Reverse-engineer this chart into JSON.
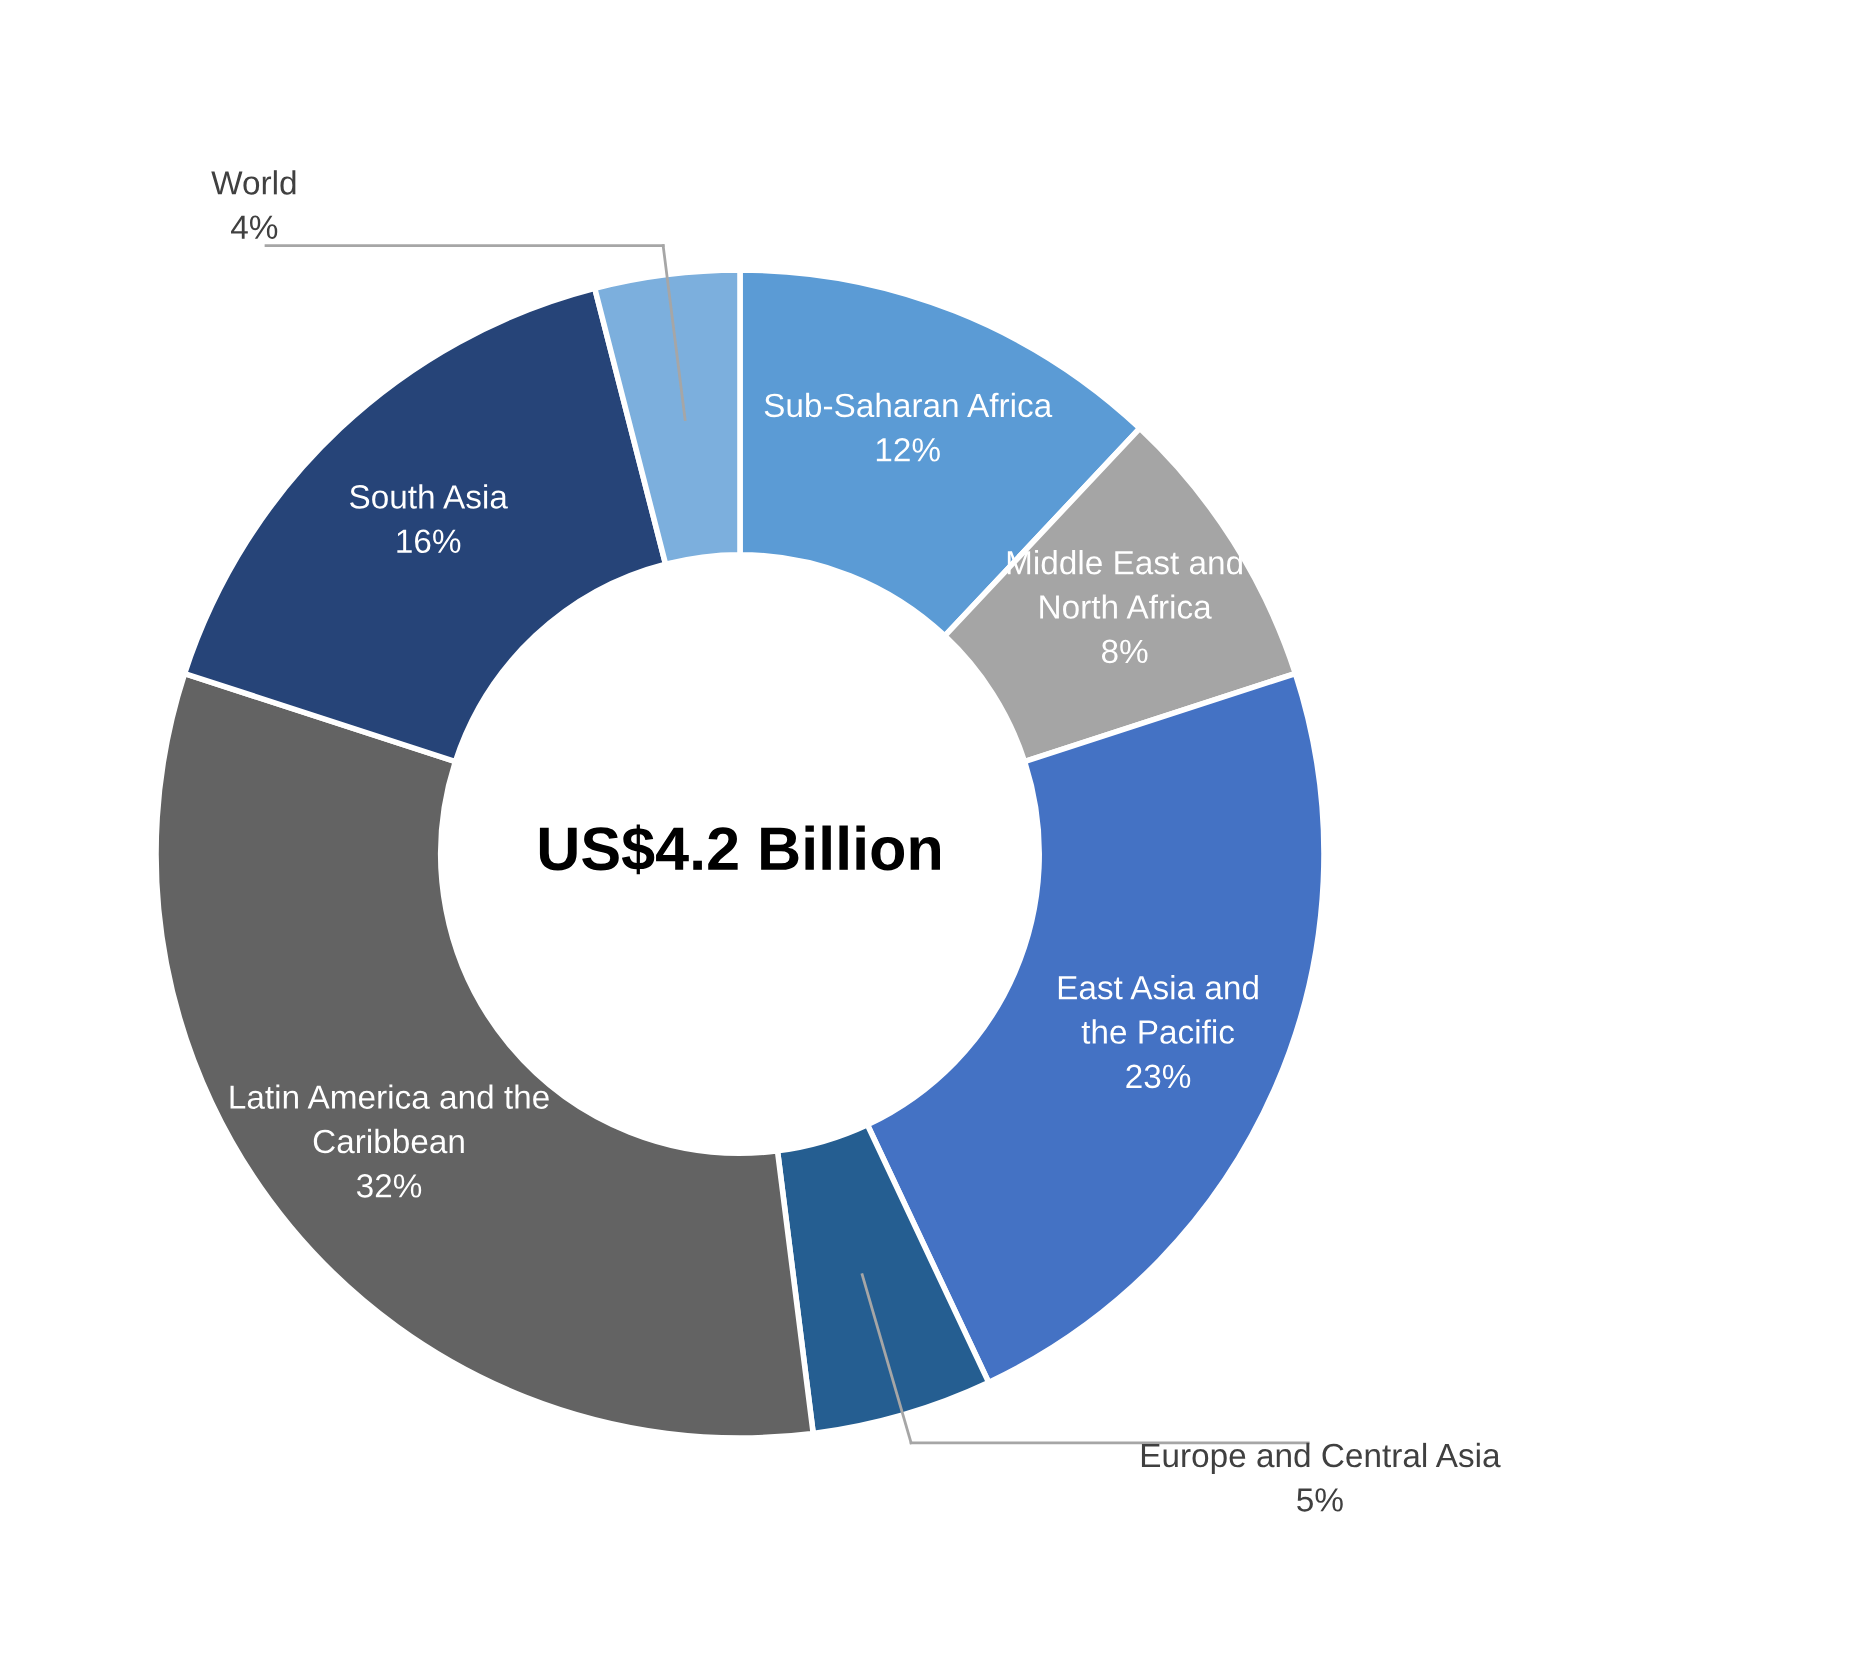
{
  "chart_data": {
    "type": "donut",
    "categories": [
      "Sub-Saharan Africa",
      "Middle East and\nNorth Africa",
      "East Asia and\nthe Pacific",
      "Europe and Central Asia",
      "Latin America and the\nCaribbean",
      "South Asia",
      "World"
    ],
    "values": [
      12,
      8,
      23,
      5,
      32,
      16,
      4
    ],
    "value_labels": [
      "12%",
      "8%",
      "23%",
      "5%",
      "32%",
      "16%",
      "4%"
    ],
    "colors": [
      "#5b9bd5",
      "#a5a5a5",
      "#4472c4",
      "#255e91",
      "#636363",
      "#264478",
      "#7cafdd"
    ],
    "annotations": [
      "US$4.2 Billion"
    ]
  }
}
